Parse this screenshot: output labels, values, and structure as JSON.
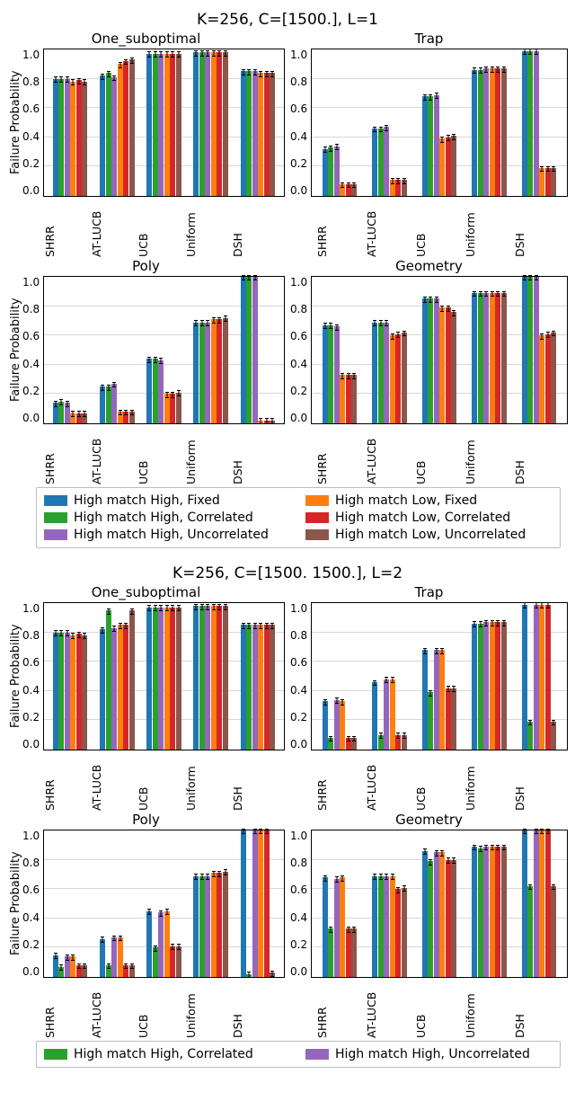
{
  "colors": {
    "series": [
      "#1f77b4",
      "#2ca02c",
      "#9467bd",
      "#ff7f0e",
      "#d62728",
      "#8c564b"
    ],
    "grid": "#b0b0b0",
    "border": "#000000",
    "bg": "#ffffff"
  },
  "series_labels": [
    "High match High, Fixed",
    "High match High, Correlated",
    "High match High, Uncorrelated",
    "High match Low, Fixed",
    "High match Low, Correlated",
    "High match Low, Uncorrelated"
  ],
  "xcats": [
    "SHRR",
    "AT-LUCB",
    "UCB",
    "Uniform",
    "DSH"
  ],
  "ylabel": "Failure Probability",
  "ylim": [
    0.0,
    1.0
  ],
  "yticks": [
    0.0,
    0.2,
    0.4,
    0.6,
    0.8,
    1.0
  ],
  "err": 0.015,
  "figures": [
    {
      "suptitle": "K=256, C=[1500.], L=1",
      "legend_cols": 2,
      "legend_order": [
        0,
        1,
        2,
        3,
        4,
        5
      ],
      "panels": [
        {
          "title": "One_suboptimal",
          "values": [
            [
              0.8,
              0.8,
              0.8,
              0.78,
              0.79,
              0.78
            ],
            [
              0.82,
              0.84,
              0.81,
              0.9,
              0.92,
              0.93
            ],
            [
              0.97,
              0.97,
              0.97,
              0.97,
              0.97,
              0.97
            ],
            [
              0.98,
              0.98,
              0.98,
              0.98,
              0.98,
              0.98
            ],
            [
              0.85,
              0.85,
              0.85,
              0.84,
              0.84,
              0.84
            ]
          ]
        },
        {
          "title": "Trap",
          "values": [
            [
              0.32,
              0.33,
              0.34,
              0.08,
              0.08,
              0.08
            ],
            [
              0.46,
              0.46,
              0.47,
              0.11,
              0.11,
              0.11
            ],
            [
              0.68,
              0.68,
              0.69,
              0.39,
              0.4,
              0.41
            ],
            [
              0.86,
              0.86,
              0.87,
              0.87,
              0.87,
              0.87
            ],
            [
              0.99,
              0.99,
              0.99,
              0.19,
              0.19,
              0.19
            ]
          ]
        },
        {
          "title": "Poly",
          "values": [
            [
              0.14,
              0.15,
              0.14,
              0.07,
              0.07,
              0.07
            ],
            [
              0.25,
              0.25,
              0.27,
              0.08,
              0.08,
              0.08
            ],
            [
              0.44,
              0.44,
              0.43,
              0.2,
              0.2,
              0.21
            ],
            [
              0.69,
              0.69,
              0.69,
              0.71,
              0.71,
              0.72
            ],
            [
              1.0,
              1.0,
              1.0,
              0.02,
              0.02,
              0.02
            ]
          ]
        },
        {
          "title": "Geometry",
          "values": [
            [
              0.67,
              0.67,
              0.66,
              0.33,
              0.33,
              0.33
            ],
            [
              0.69,
              0.69,
              0.69,
              0.6,
              0.61,
              0.62
            ],
            [
              0.85,
              0.85,
              0.85,
              0.79,
              0.79,
              0.76
            ],
            [
              0.89,
              0.89,
              0.89,
              0.89,
              0.89,
              0.89
            ],
            [
              1.0,
              1.0,
              1.0,
              0.6,
              0.61,
              0.62
            ]
          ]
        }
      ]
    },
    {
      "suptitle": "K=256, C=[1500. 1500.], L=2",
      "legend_cols": 2,
      "legend_order": [
        1,
        2
      ],
      "truncated": true,
      "panels": [
        {
          "title": "One_suboptimal",
          "values": [
            [
              0.8,
              0.8,
              0.8,
              0.78,
              0.79,
              0.78
            ],
            [
              0.82,
              0.95,
              0.83,
              0.85,
              0.85,
              0.95
            ],
            [
              0.97,
              0.97,
              0.97,
              0.97,
              0.97,
              0.97
            ],
            [
              0.98,
              0.98,
              0.98,
              0.98,
              0.98,
              0.98
            ],
            [
              0.85,
              0.85,
              0.85,
              0.85,
              0.85,
              0.85
            ]
          ]
        },
        {
          "title": "Trap",
          "values": [
            [
              0.33,
              0.08,
              0.34,
              0.33,
              0.08,
              0.08
            ],
            [
              0.46,
              0.1,
              0.48,
              0.48,
              0.1,
              0.1
            ],
            [
              0.68,
              0.39,
              0.68,
              0.68,
              0.42,
              0.42
            ],
            [
              0.86,
              0.86,
              0.87,
              0.87,
              0.87,
              0.87
            ],
            [
              0.99,
              0.19,
              0.99,
              0.99,
              0.99,
              0.19
            ]
          ]
        },
        {
          "title": "Poly",
          "values": [
            [
              0.15,
              0.07,
              0.14,
              0.14,
              0.08,
              0.08
            ],
            [
              0.26,
              0.08,
              0.27,
              0.27,
              0.08,
              0.08
            ],
            [
              0.45,
              0.2,
              0.44,
              0.45,
              0.21,
              0.21
            ],
            [
              0.69,
              0.69,
              0.69,
              0.71,
              0.71,
              0.72
            ],
            [
              1.0,
              0.02,
              1.0,
              1.0,
              1.0,
              0.03
            ]
          ]
        },
        {
          "title": "Geometry",
          "values": [
            [
              0.68,
              0.33,
              0.67,
              0.68,
              0.33,
              0.33
            ],
            [
              0.69,
              0.69,
              0.69,
              0.69,
              0.6,
              0.61
            ],
            [
              0.86,
              0.79,
              0.85,
              0.85,
              0.8,
              0.8
            ],
            [
              0.89,
              0.88,
              0.89,
              0.89,
              0.89,
              0.89
            ],
            [
              1.0,
              0.62,
              1.0,
              1.0,
              1.0,
              0.62
            ]
          ]
        }
      ]
    }
  ]
}
